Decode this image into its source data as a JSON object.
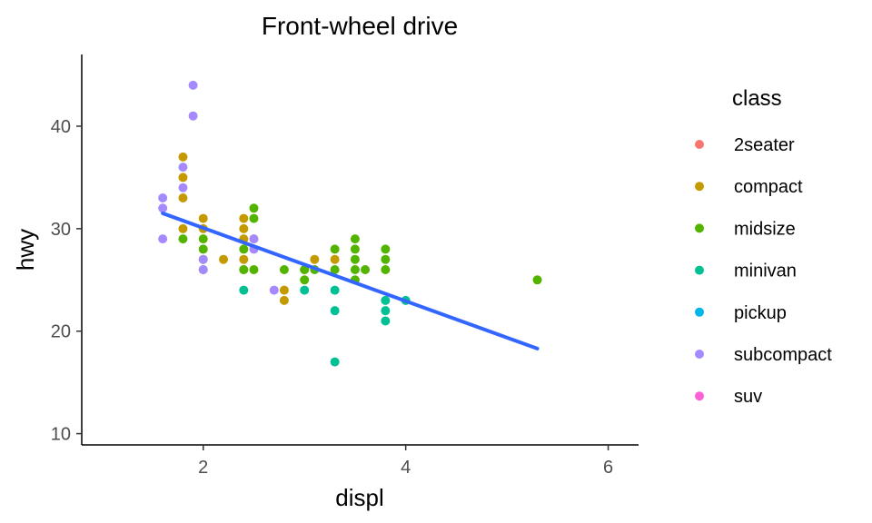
{
  "chart_data": {
    "type": "scatter",
    "title": "Front-wheel drive",
    "xlabel": "displ",
    "ylabel": "hwy",
    "xlim": [
      0.8,
      6.3
    ],
    "ylim": [
      8.9,
      47.0
    ],
    "x_ticks": [
      2,
      4,
      6
    ],
    "y_ticks": [
      10,
      20,
      30,
      40
    ],
    "grid": false,
    "legend": {
      "title": "class",
      "placement": "right",
      "entries": [
        {
          "name": "2seater",
          "color": "#F8766D"
        },
        {
          "name": "compact",
          "color": "#C49A00"
        },
        {
          "name": "midsize",
          "color": "#53B400"
        },
        {
          "name": "minivan",
          "color": "#00C094"
        },
        {
          "name": "pickup",
          "color": "#00B6EB"
        },
        {
          "name": "subcompact",
          "color": "#A58AFF"
        },
        {
          "name": "suv",
          "color": "#FB61D7"
        }
      ]
    },
    "series": [
      {
        "name": "compact",
        "points": [
          [
            1.8,
            37
          ],
          [
            1.8,
            35
          ],
          [
            1.8,
            33
          ],
          [
            1.8,
            30
          ],
          [
            2.0,
            31
          ],
          [
            2.0,
            30
          ],
          [
            2.2,
            27
          ],
          [
            2.4,
            31
          ],
          [
            2.4,
            30
          ],
          [
            2.4,
            29
          ],
          [
            2.4,
            27
          ],
          [
            2.4,
            26
          ],
          [
            2.5,
            29
          ],
          [
            2.8,
            24
          ],
          [
            2.8,
            23
          ],
          [
            3.0,
            26
          ],
          [
            3.1,
            27
          ],
          [
            3.3,
            27
          ]
        ]
      },
      {
        "name": "midsize",
        "points": [
          [
            1.8,
            29
          ],
          [
            2.0,
            29
          ],
          [
            2.0,
            28
          ],
          [
            2.0,
            27
          ],
          [
            2.0,
            26
          ],
          [
            2.4,
            28
          ],
          [
            2.4,
            26
          ],
          [
            2.5,
            32
          ],
          [
            2.5,
            31
          ],
          [
            2.5,
            26
          ],
          [
            2.8,
            26
          ],
          [
            3.0,
            26
          ],
          [
            3.0,
            25
          ],
          [
            3.1,
            26
          ],
          [
            3.3,
            28
          ],
          [
            3.3,
            26
          ],
          [
            3.5,
            29
          ],
          [
            3.5,
            28
          ],
          [
            3.5,
            27
          ],
          [
            3.5,
            26
          ],
          [
            3.5,
            25
          ],
          [
            3.6,
            26
          ],
          [
            3.8,
            28
          ],
          [
            3.8,
            27
          ],
          [
            3.8,
            26
          ],
          [
            5.3,
            25
          ]
        ]
      },
      {
        "name": "minivan",
        "points": [
          [
            2.4,
            24
          ],
          [
            3.0,
            24
          ],
          [
            3.3,
            24
          ],
          [
            3.3,
            22
          ],
          [
            3.3,
            17
          ],
          [
            3.8,
            23
          ],
          [
            3.8,
            22
          ],
          [
            3.8,
            21
          ],
          [
            4.0,
            23
          ]
        ]
      },
      {
        "name": "subcompact",
        "points": [
          [
            1.6,
            33
          ],
          [
            1.6,
            32
          ],
          [
            1.6,
            29
          ],
          [
            1.8,
            36
          ],
          [
            1.8,
            34
          ],
          [
            1.9,
            44
          ],
          [
            1.9,
            41
          ],
          [
            2.0,
            27
          ],
          [
            2.0,
            26
          ],
          [
            2.5,
            29
          ],
          [
            2.5,
            28
          ],
          [
            2.7,
            24
          ]
        ]
      }
    ],
    "trend_line": {
      "color": "#3366FF",
      "points": [
        [
          1.6,
          31.5
        ],
        [
          5.3,
          18.3
        ]
      ]
    }
  }
}
